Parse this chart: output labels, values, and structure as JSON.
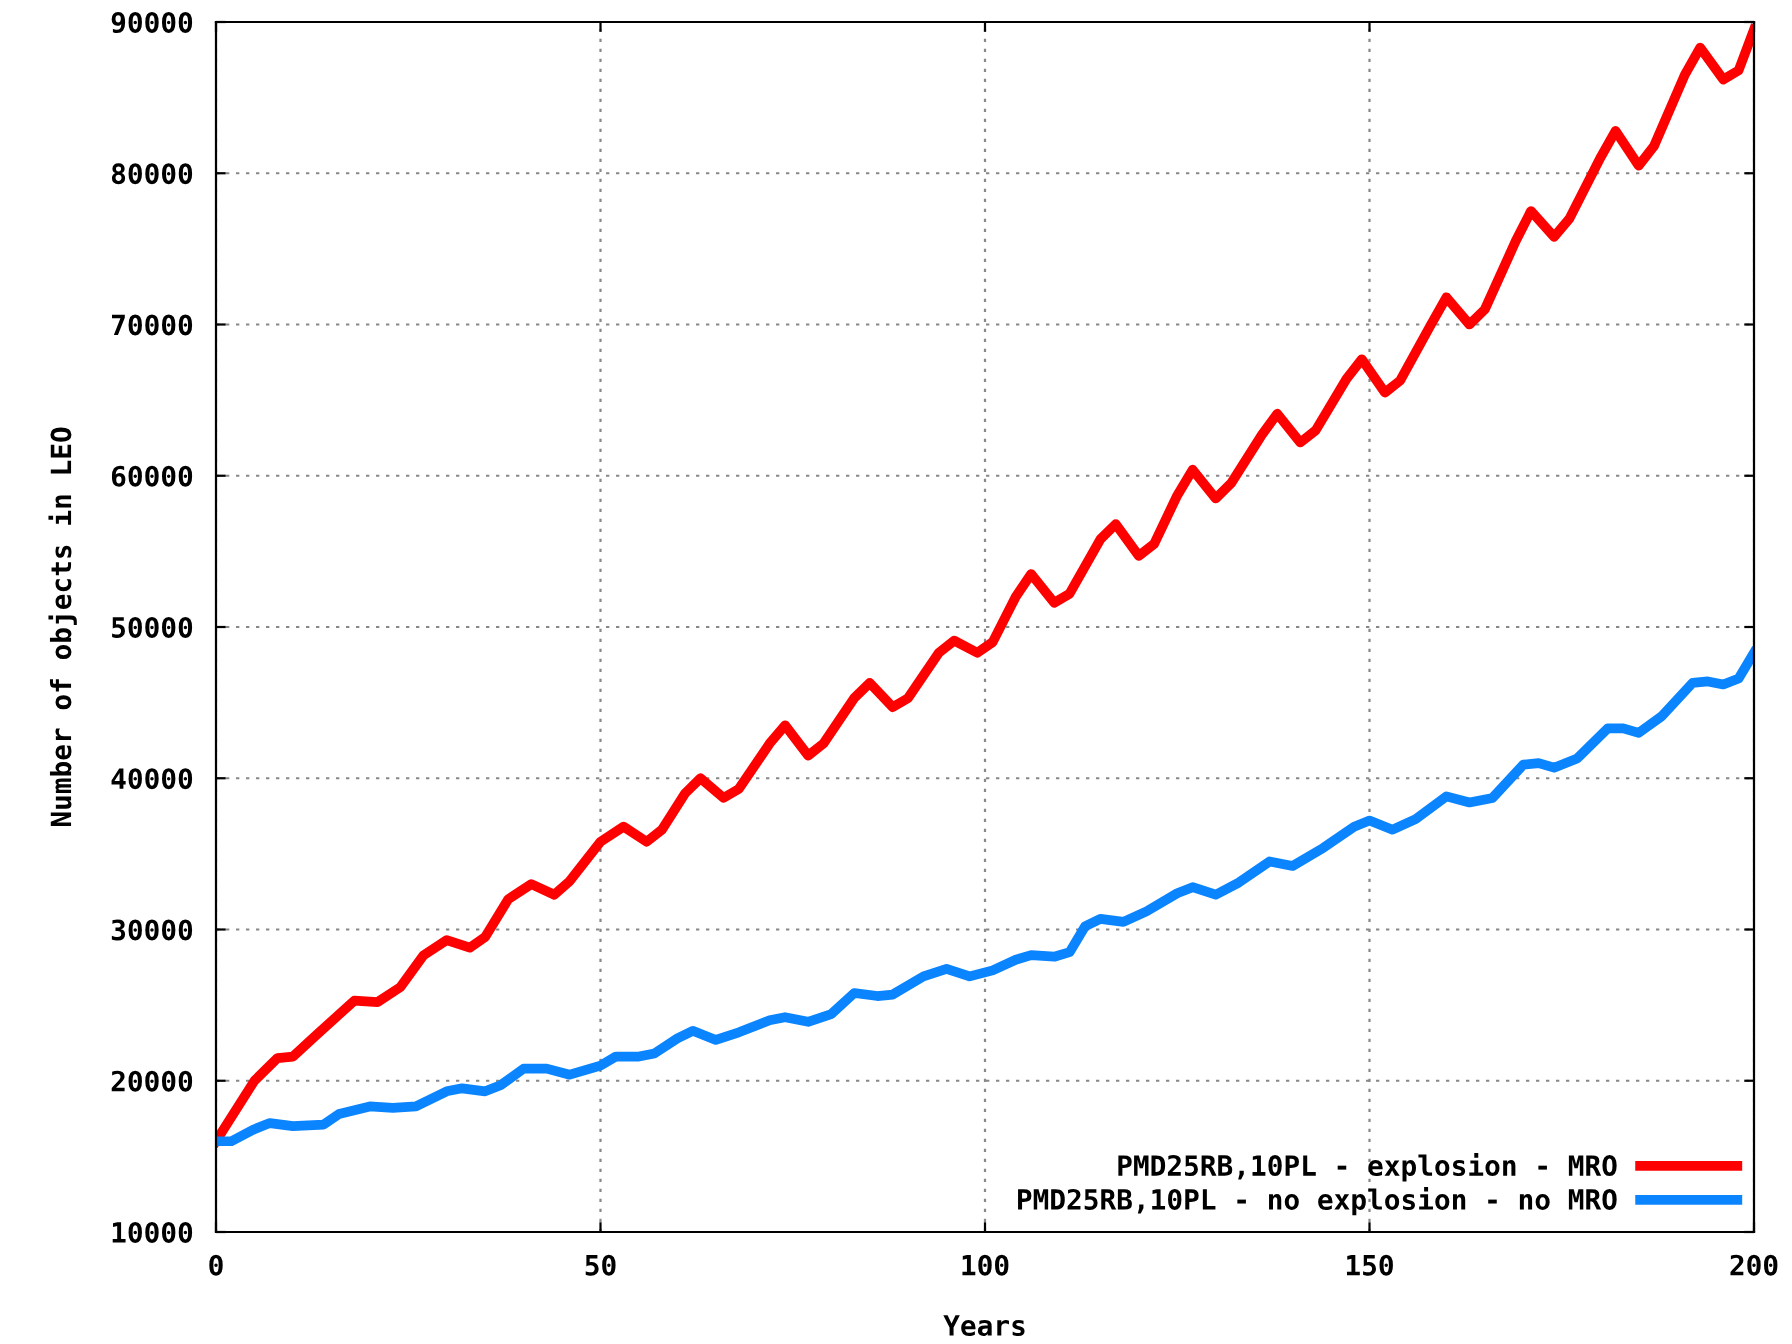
{
  "chart_data": {
    "type": "line",
    "xlabel": "Years",
    "ylabel": "Number of objects in LEO",
    "xlim": [
      0,
      200
    ],
    "xticks": [
      0,
      50,
      100,
      150,
      200
    ],
    "ylim": [
      10000,
      90000
    ],
    "yticks": [
      10000,
      20000,
      30000,
      40000,
      50000,
      60000,
      70000,
      80000,
      90000
    ],
    "grid": true,
    "legend": "bottom right",
    "line_style": "solid",
    "marker": "none",
    "series": [
      {
        "name": "PMD25RB,10PL - explosion - MRO",
        "color": "#ff0000",
        "x": [
          0,
          5,
          8,
          10,
          13,
          18,
          21,
          24,
          27,
          30,
          33,
          35,
          38,
          41,
          44,
          46,
          50,
          53,
          56,
          58,
          61,
          63,
          66,
          68,
          72,
          74,
          77,
          79,
          83,
          85,
          88,
          90,
          94,
          96,
          99,
          101,
          104,
          106,
          109,
          111,
          115,
          117,
          120,
          122,
          125,
          127,
          130,
          132,
          136,
          138,
          141,
          143,
          147,
          149,
          152,
          154,
          158,
          160,
          163,
          165,
          169,
          171,
          174,
          176,
          180,
          182,
          185,
          187,
          191,
          193,
          196,
          198,
          200
        ],
        "values": [
          16000,
          20000,
          21500,
          21600,
          23000,
          25300,
          25200,
          26200,
          28300,
          29300,
          28800,
          29500,
          32000,
          33000,
          32300,
          33200,
          35800,
          36800,
          35800,
          36600,
          39000,
          40000,
          38700,
          39300,
          42300,
          43500,
          41500,
          42300,
          45300,
          46300,
          44700,
          45300,
          48300,
          49100,
          48300,
          49000,
          52000,
          53500,
          51600,
          52200,
          55800,
          56800,
          54700,
          55500,
          58700,
          60400,
          58500,
          59500,
          62700,
          64100,
          62200,
          63000,
          66400,
          67700,
          65500,
          66300,
          70000,
          71800,
          70000,
          71000,
          75500,
          77500,
          75800,
          77000,
          81000,
          82800,
          80500,
          81800,
          86500,
          88300,
          86200,
          86800,
          89500
        ]
      },
      {
        "name": "PMD25RB,10PL - no explosion - no MRO",
        "color": "#0a84ff",
        "x": [
          0,
          2,
          5,
          7,
          10,
          14,
          16,
          20,
          23,
          26,
          30,
          32,
          35,
          37,
          40,
          43,
          46,
          50,
          52,
          55,
          57,
          60,
          62,
          65,
          68,
          72,
          74,
          77,
          80,
          83,
          86,
          88,
          92,
          95,
          98,
          101,
          104,
          106,
          109,
          111,
          113,
          115,
          118,
          121,
          125,
          127,
          130,
          133,
          137,
          140,
          144,
          148,
          150,
          153,
          156,
          160,
          163,
          166,
          170,
          172,
          174,
          177,
          181,
          183,
          185,
          188,
          192,
          194,
          196,
          198,
          200
        ],
        "values": [
          16000,
          16000,
          16800,
          17200,
          17000,
          17100,
          17800,
          18300,
          18200,
          18300,
          19300,
          19500,
          19300,
          19700,
          20800,
          20800,
          20400,
          21000,
          21600,
          21600,
          21800,
          22800,
          23300,
          22700,
          23200,
          24000,
          24200,
          23900,
          24400,
          25800,
          25600,
          25700,
          26900,
          27400,
          26900,
          27300,
          28000,
          28300,
          28200,
          28500,
          30200,
          30700,
          30500,
          31200,
          32400,
          32800,
          32300,
          33100,
          34500,
          34200,
          35400,
          36800,
          37200,
          36600,
          37300,
          38800,
          38400,
          38700,
          40900,
          41000,
          40700,
          41300,
          43300,
          43300,
          43000,
          44100,
          46300,
          46400,
          46200,
          46600,
          48300
        ]
      }
    ]
  }
}
